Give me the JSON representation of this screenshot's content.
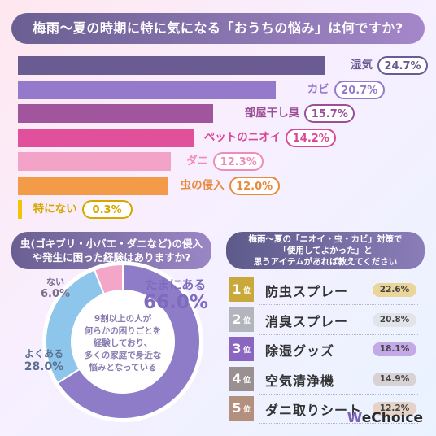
{
  "header": {
    "title": "梅雨〜夏の時期に特に気になる「おうちの悩み」は何ですか?"
  },
  "chart_data": [
    {
      "type": "bar",
      "orientation": "horizontal",
      "title": "梅雨〜夏の時期に特に気になる「おうちの悩み」は何ですか?",
      "categories": [
        "湿気",
        "カビ",
        "部屋干し臭",
        "ペットのニオイ",
        "ダニ",
        "虫の侵入",
        "特にない"
      ],
      "values": [
        24.7,
        20.7,
        15.7,
        14.2,
        12.3,
        12.0,
        0.3
      ],
      "value_labels": [
        "24.7%",
        "20.7%",
        "15.7%",
        "14.2%",
        "12.3%",
        "12.0%",
        "0.3%"
      ],
      "colors": [
        "#6b5b93",
        "#9579cb",
        "#a0559d",
        "#e0509b",
        "#f3a3c8",
        "#f49b4a",
        "#f1c30a"
      ],
      "label_colors": [
        "#6b5b93",
        "#9579cb",
        "#9c4f97",
        "#d94993",
        "#f08cb8",
        "#e8893b",
        "#d4a800"
      ],
      "xlim": [
        0,
        24.7
      ]
    },
    {
      "type": "pie",
      "title": "虫(ゴキブリ・小バエ・ダニなど)の侵入や発生に困った経験はありますか?",
      "categories": [
        "たまにある",
        "よくある",
        "ない"
      ],
      "values": [
        66.0,
        28.0,
        6.0
      ],
      "value_labels": [
        "66.0%",
        "28.0%",
        "6.0%"
      ],
      "colors": [
        "#8e7cc8",
        "#8dc6ea",
        "#f3a6c8"
      ],
      "label_colors": [
        "#7e6bbd",
        "#5a7090",
        "#7a6f8a"
      ],
      "center_note": "9割以上の人が\n何らかの困りごとを\n経験しており、\n多くの家庭で身近な\n悩みとなっている"
    },
    {
      "type": "table",
      "title": "梅雨〜夏の「ニオイ・虫・カビ」対策で\n「使用してよかった」と\n思うアイテムがあれば教えてください",
      "rank_suffix": "位",
      "rows": [
        {
          "rank": "1",
          "item": "防虫スプレー",
          "value": "22.6%",
          "badge_color": "#c9a93c",
          "pill_color": "#ead59a"
        },
        {
          "rank": "2",
          "item": "消臭スプレー",
          "value": "20.8%",
          "badge_color": "#b3b5bd",
          "pill_color": "#e3e4ea"
        },
        {
          "rank": "3",
          "item": "除湿グッズ",
          "value": "18.1%",
          "badge_color": "#8a66c0",
          "pill_color": "#c3a9e6"
        },
        {
          "rank": "4",
          "item": "空気清浄機",
          "value": "14.9%",
          "badge_color": "#9a9092",
          "pill_color": "#d9d2d4"
        },
        {
          "rank": "5",
          "item": "ダニ取りシート",
          "value": "12.2%",
          "badge_color": "#b38f7e",
          "pill_color": "#e6d3c8"
        }
      ]
    }
  ],
  "brand": {
    "logo_letter": "W",
    "logo_rest": "eChoice"
  }
}
